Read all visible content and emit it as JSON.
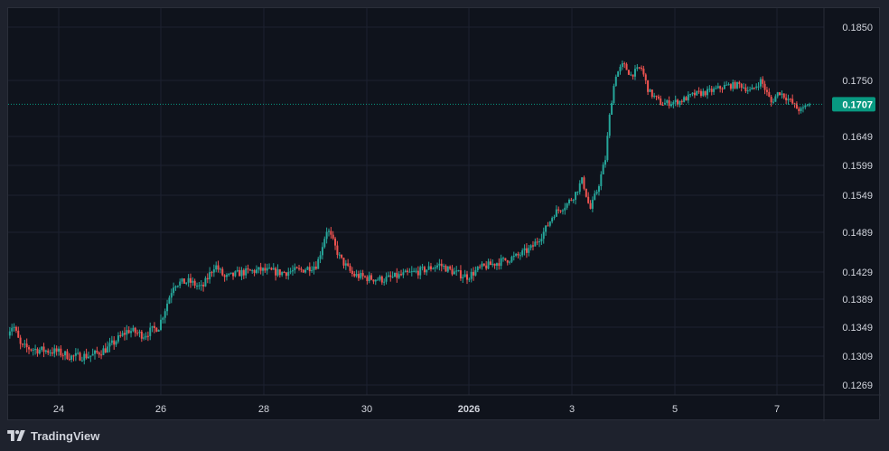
{
  "brand": {
    "name": "TradingView",
    "logo_icon": "tradingview-logo-icon"
  },
  "colors": {
    "background": "#1e222d",
    "pane": "#0f131c",
    "grid": "#1c2230",
    "axis_text": "#d1d4dc",
    "up": "#26a69a",
    "down": "#ef5350",
    "last_price_badge": "#089981"
  },
  "chart_data": {
    "type": "candlestick",
    "title": "",
    "xlabel": "",
    "ylabel": "",
    "price_ticks": [
      "0.1850",
      "0.1750",
      "0.1649",
      "0.1599",
      "0.1549",
      "0.1489",
      "0.1429",
      "0.1389",
      "0.1349",
      "0.1309",
      "0.1269"
    ],
    "date_ticks": [
      "24",
      "26",
      "28",
      "30",
      "2026",
      "3",
      "5",
      "7"
    ],
    "date_tick_bold": [
      false,
      false,
      false,
      false,
      true,
      false,
      false,
      false
    ],
    "last_price": "0.1707",
    "x_range_days": [
      23.1,
      8.95
    ],
    "price_path": [
      [
        23.0,
        0.134
      ],
      [
        23.15,
        0.1352
      ],
      [
        23.3,
        0.1322
      ],
      [
        23.6,
        0.1318
      ],
      [
        24.0,
        0.1315
      ],
      [
        24.3,
        0.1308
      ],
      [
        24.7,
        0.131
      ],
      [
        25.0,
        0.132
      ],
      [
        25.4,
        0.1345
      ],
      [
        25.7,
        0.1338
      ],
      [
        26.0,
        0.135
      ],
      [
        26.15,
        0.138
      ],
      [
        26.3,
        0.1412
      ],
      [
        26.6,
        0.1415
      ],
      [
        26.85,
        0.1405
      ],
      [
        27.1,
        0.144
      ],
      [
        27.3,
        0.142
      ],
      [
        27.6,
        0.1428
      ],
      [
        28.0,
        0.1432
      ],
      [
        28.4,
        0.1428
      ],
      [
        28.8,
        0.1432
      ],
      [
        29.1,
        0.144
      ],
      [
        29.3,
        0.1495
      ],
      [
        29.55,
        0.145
      ],
      [
        29.8,
        0.1425
      ],
      [
        30.1,
        0.142
      ],
      [
        30.4,
        0.1418
      ],
      [
        30.8,
        0.1425
      ],
      [
        31.2,
        0.1432
      ],
      [
        31.5,
        0.144
      ],
      [
        31.8,
        0.1428
      ],
      [
        32.05,
        0.1422
      ],
      [
        32.3,
        0.1435
      ],
      [
        32.7,
        0.1445
      ],
      [
        33.0,
        0.1452
      ],
      [
        33.3,
        0.1465
      ],
      [
        33.55,
        0.149
      ],
      [
        33.75,
        0.152
      ],
      [
        34.0,
        0.1535
      ],
      [
        34.15,
        0.155
      ],
      [
        34.3,
        0.1575
      ],
      [
        34.45,
        0.1525
      ],
      [
        34.6,
        0.156
      ],
      [
        34.75,
        0.161
      ],
      [
        34.85,
        0.17
      ],
      [
        34.95,
        0.176
      ],
      [
        35.1,
        0.178
      ],
      [
        35.25,
        0.176
      ],
      [
        35.45,
        0.1775
      ],
      [
        35.6,
        0.173
      ],
      [
        35.85,
        0.1708
      ],
      [
        36.2,
        0.1712
      ],
      [
        36.5,
        0.1725
      ],
      [
        36.8,
        0.173
      ],
      [
        37.1,
        0.174
      ],
      [
        37.4,
        0.1742
      ],
      [
        37.6,
        0.173
      ],
      [
        37.8,
        0.175
      ],
      [
        38.0,
        0.171
      ],
      [
        38.15,
        0.173
      ],
      [
        38.35,
        0.1715
      ],
      [
        38.5,
        0.17
      ],
      [
        38.6,
        0.1695
      ],
      [
        38.7,
        0.1707
      ]
    ]
  }
}
